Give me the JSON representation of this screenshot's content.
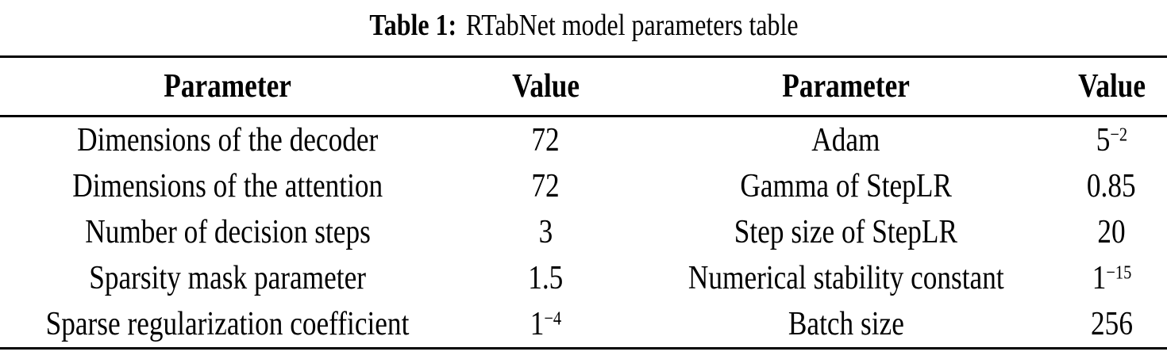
{
  "caption": {
    "label": "Table 1:",
    "title": "RTabNet model parameters table"
  },
  "colors": {
    "text": "#000000",
    "rule": "#000000",
    "background": "#ffffff"
  },
  "table": {
    "headers": {
      "param_left": "Parameter",
      "value_left": "Value",
      "param_right": "Parameter",
      "value_right": "Value"
    },
    "rows": [
      {
        "param_left": "Dimensions of the decoder",
        "value_left": {
          "base": "72",
          "sup": ""
        },
        "param_right": "Adam",
        "value_right": {
          "base": "5",
          "sup": "−2"
        }
      },
      {
        "param_left": "Dimensions of the attention",
        "value_left": {
          "base": "72",
          "sup": ""
        },
        "param_right": "Gamma of StepLR",
        "value_right": {
          "base": "0.85",
          "sup": ""
        }
      },
      {
        "param_left": "Number of decision steps",
        "value_left": {
          "base": "3",
          "sup": ""
        },
        "param_right": "Step size of StepLR",
        "value_right": {
          "base": "20",
          "sup": ""
        }
      },
      {
        "param_left": "Sparsity mask parameter",
        "value_left": {
          "base": "1.5",
          "sup": ""
        },
        "param_right": "Numerical stability constant",
        "value_right": {
          "base": "1",
          "sup": "−15"
        }
      },
      {
        "param_left": "Sparse regularization coefficient",
        "value_left": {
          "base": "1",
          "sup": "−4"
        },
        "param_right": "Batch size",
        "value_right": {
          "base": "256",
          "sup": ""
        }
      }
    ]
  }
}
